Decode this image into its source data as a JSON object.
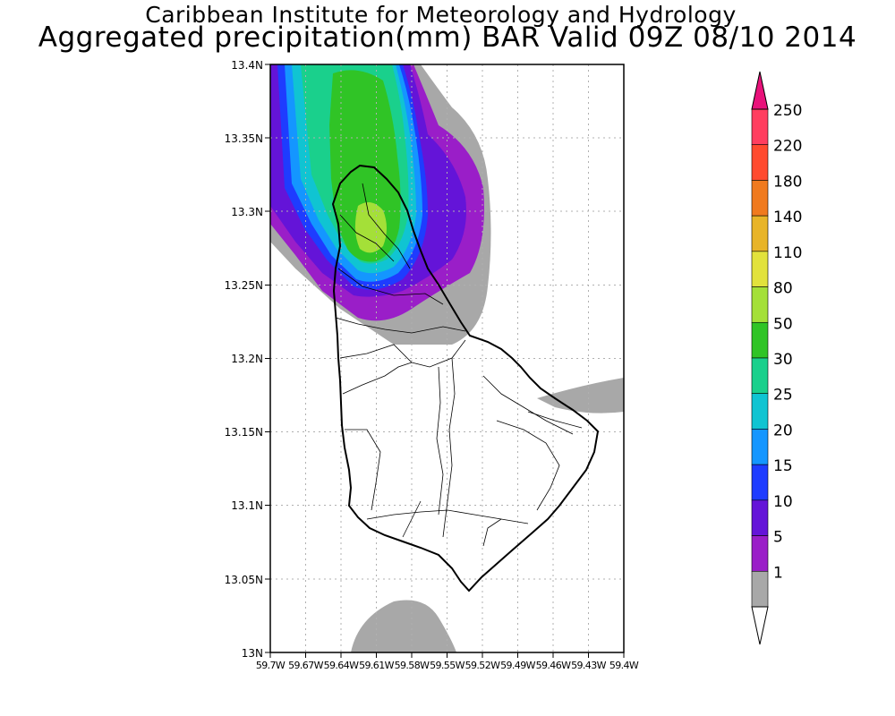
{
  "title": {
    "line1": "Caribbean Institute for Meteorology and Hydrology",
    "line2": "Aggregated precipitation(mm) BAR Valid 09Z 08/10 2014"
  },
  "axes": {
    "lat_labels": [
      "13.4N",
      "13.35N",
      "13.3N",
      "13.25N",
      "13.2N",
      "13.15N",
      "13.1N",
      "13.05N",
      "13N"
    ],
    "lon_labels": [
      "59.7W",
      "59.67W",
      "59.64W",
      "59.61W",
      "59.58W",
      "59.55W",
      "59.52W",
      "59.49W",
      "59.46W",
      "59.43W",
      "59.4W"
    ]
  },
  "colorbar": {
    "bins": [
      {
        "label": "250",
        "color": "#ff3e5f"
      },
      {
        "label": "220",
        "color": "#ff4a2e"
      },
      {
        "label": "180",
        "color": "#f07a1e"
      },
      {
        "label": "140",
        "color": "#e8b428"
      },
      {
        "label": "110",
        "color": "#e2e23c"
      },
      {
        "label": "80",
        "color": "#a4e038"
      },
      {
        "label": "50",
        "color": "#30c426"
      },
      {
        "label": "30",
        "color": "#1ad08c"
      },
      {
        "label": "25",
        "color": "#10c4d2"
      },
      {
        "label": "20",
        "color": "#1496ff"
      },
      {
        "label": "15",
        "color": "#1e3cff"
      },
      {
        "label": "10",
        "color": "#6414d8"
      },
      {
        "label": "5",
        "color": "#9a1ec8"
      },
      {
        "label": "1",
        "color": "#a8a8a8"
      }
    ],
    "top_arrow_color": "#e8127a",
    "bottom_arrow_color": "#ffffff"
  }
}
